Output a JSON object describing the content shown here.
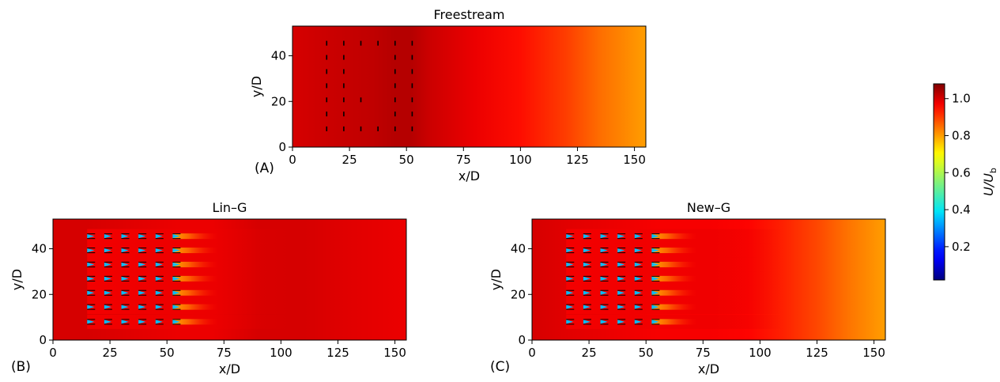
{
  "chart_data": [
    {
      "type": "heatmap",
      "panel_label": "(A)",
      "title": "Freestream",
      "xlabel": "x/D",
      "ylabel": "y/D",
      "xlim": [
        0,
        155
      ],
      "ylim": [
        0,
        53
      ],
      "xticks": [
        0,
        25,
        50,
        75,
        100,
        125,
        150
      ],
      "yticks": [
        0,
        20,
        40
      ],
      "field_profile_x": [
        0,
        15,
        35,
        45,
        52,
        60,
        80,
        100,
        120,
        135,
        155
      ],
      "field_profile_value": [
        1.0,
        1.01,
        1.02,
        1.03,
        1.03,
        1.01,
        0.98,
        0.95,
        0.9,
        0.85,
        0.8
      ],
      "wakes": false,
      "turbines": {
        "x": [
          15,
          22.5,
          30,
          37.5,
          45,
          52.5
        ],
        "rows": [
          [
            8,
            14.5,
            20.7,
            26.9,
            33.1,
            39.3,
            45.5
          ],
          [
            8,
            14.5,
            20.7,
            26.9,
            33.1,
            39.3,
            45.5
          ],
          [
            8,
            20.7,
            45.5
          ],
          [
            8,
            45.5
          ],
          [
            8,
            14.5,
            20.7,
            26.9,
            33.1,
            39.3,
            45.5
          ],
          [
            8,
            14.5,
            20.7,
            26.9,
            33.1,
            39.3,
            45.5
          ]
        ]
      }
    },
    {
      "type": "heatmap",
      "panel_label": "(B)",
      "title": "Lin–G",
      "xlabel": "x/D",
      "ylabel": "y/D",
      "xlim": [
        0,
        155
      ],
      "ylim": [
        0,
        53
      ],
      "xticks": [
        0,
        25,
        50,
        75,
        100,
        125,
        150
      ],
      "yticks": [
        0,
        20,
        40
      ],
      "field_profile_x": [
        0,
        15,
        55,
        70,
        90,
        110,
        130,
        155
      ],
      "field_profile_value": [
        1.0,
        1.0,
        0.98,
        0.98,
        1.0,
        1.0,
        0.99,
        0.98
      ],
      "wakes": true,
      "turbines": {
        "x": [
          15,
          22.5,
          30,
          37.5,
          45,
          52.5
        ],
        "rows": [
          [
            8,
            14.5,
            20.7,
            26.9,
            33.1,
            39.3,
            45.5
          ],
          [
            8,
            14.5,
            20.7,
            26.9,
            33.1,
            39.3,
            45.5
          ],
          [
            8,
            14.5,
            20.7,
            26.9,
            33.1,
            39.3,
            45.5
          ],
          [
            8,
            14.5,
            20.7,
            26.9,
            33.1,
            39.3,
            45.5
          ],
          [
            8,
            14.5,
            20.7,
            26.9,
            33.1,
            39.3,
            45.5
          ],
          [
            8,
            14.5,
            20.7,
            26.9,
            33.1,
            39.3,
            45.5
          ]
        ]
      }
    },
    {
      "type": "heatmap",
      "panel_label": "(C)",
      "title": "New–G",
      "xlabel": "x/D",
      "ylabel": "y/D",
      "xlim": [
        0,
        155
      ],
      "ylim": [
        0,
        53
      ],
      "xticks": [
        0,
        25,
        50,
        75,
        100,
        125,
        150
      ],
      "yticks": [
        0,
        20,
        40
      ],
      "field_profile_x": [
        0,
        15,
        55,
        78,
        95,
        110,
        125,
        140,
        155
      ],
      "field_profile_value": [
        1.0,
        0.99,
        0.97,
        0.97,
        0.96,
        0.93,
        0.89,
        0.84,
        0.8
      ],
      "wakes": true,
      "turbines": {
        "x": [
          15,
          22.5,
          30,
          37.5,
          45,
          52.5
        ],
        "rows": [
          [
            8,
            14.5,
            20.7,
            26.9,
            33.1,
            39.3,
            45.5
          ],
          [
            8,
            14.5,
            20.7,
            26.9,
            33.1,
            39.3,
            45.5
          ],
          [
            8,
            14.5,
            20.7,
            26.9,
            33.1,
            39.3,
            45.5
          ],
          [
            8,
            14.5,
            20.7,
            26.9,
            33.1,
            39.3,
            45.5
          ],
          [
            8,
            14.5,
            20.7,
            26.9,
            33.1,
            39.3,
            45.5
          ],
          [
            8,
            14.5,
            20.7,
            26.9,
            33.1,
            39.3,
            45.5
          ]
        ]
      }
    }
  ],
  "colorbar": {
    "label_main": "U/U",
    "label_sub": "b",
    "vmin": 0.02,
    "vmax": 1.08,
    "ticks": [
      0.2,
      0.4,
      0.6,
      0.8,
      1.0
    ],
    "tick_labels": [
      "0.2",
      "0.4",
      "0.6",
      "0.8",
      "1.0"
    ],
    "colormap": "jet"
  }
}
